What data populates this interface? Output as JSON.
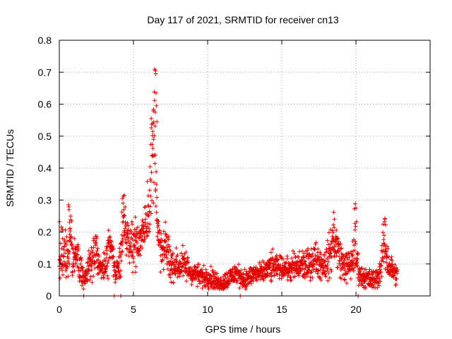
{
  "chart_data": {
    "type": "scatter",
    "title": "Day 117 of 2021, SRMTID for receiver cn13",
    "xlabel": "GPS time / hours",
    "ylabel": "SRMTID / TECUs",
    "xlim": [
      0,
      25
    ],
    "ylim": [
      0,
      0.8
    ],
    "xticks": [
      0,
      5,
      10,
      15,
      20
    ],
    "xtick_labels": [
      "0",
      "5",
      "10",
      "15",
      "20"
    ],
    "yticks": [
      0,
      0.1,
      0.2,
      0.3,
      0.4,
      0.5,
      0.6,
      0.7,
      0.8
    ],
    "ytick_labels": [
      "0",
      "0.1",
      "0.2",
      "0.3",
      "0.4",
      "0.5",
      "0.6",
      "0.7",
      "0.8"
    ],
    "grid": true,
    "marker": "plus",
    "color": "#e00000",
    "envelope": [
      [
        0.0,
        0.14,
        0.06
      ],
      [
        0.2,
        0.12,
        0.05
      ],
      [
        0.4,
        0.11,
        0.05
      ],
      [
        0.6,
        0.14,
        0.06
      ],
      [
        0.75,
        0.2,
        0.07
      ],
      [
        0.9,
        0.13,
        0.05
      ],
      [
        1.1,
        0.12,
        0.04
      ],
      [
        1.3,
        0.1,
        0.04
      ],
      [
        1.5,
        0.08,
        0.03
      ],
      [
        1.7,
        0.06,
        0.02
      ],
      [
        1.9,
        0.07,
        0.03
      ],
      [
        2.1,
        0.1,
        0.04
      ],
      [
        2.3,
        0.12,
        0.04
      ],
      [
        2.5,
        0.14,
        0.04
      ],
      [
        2.7,
        0.1,
        0.03
      ],
      [
        2.9,
        0.08,
        0.03
      ],
      [
        3.1,
        0.09,
        0.03
      ],
      [
        3.3,
        0.13,
        0.04
      ],
      [
        3.5,
        0.15,
        0.04
      ],
      [
        3.7,
        0.09,
        0.03
      ],
      [
        3.9,
        0.08,
        0.02
      ],
      [
        4.1,
        0.12,
        0.04
      ],
      [
        4.3,
        0.24,
        0.05
      ],
      [
        4.5,
        0.2,
        0.04
      ],
      [
        4.7,
        0.17,
        0.04
      ],
      [
        4.9,
        0.16,
        0.04
      ],
      [
        5.1,
        0.18,
        0.05
      ],
      [
        5.3,
        0.15,
        0.04
      ],
      [
        5.5,
        0.18,
        0.04
      ],
      [
        5.7,
        0.22,
        0.05
      ],
      [
        5.9,
        0.25,
        0.06
      ],
      [
        6.1,
        0.3,
        0.08
      ],
      [
        6.3,
        0.45,
        0.12
      ],
      [
        6.45,
        0.58,
        0.12
      ],
      [
        6.6,
        0.2,
        0.06
      ],
      [
        6.8,
        0.15,
        0.04
      ],
      [
        7.0,
        0.13,
        0.04
      ],
      [
        7.2,
        0.16,
        0.04
      ],
      [
        7.4,
        0.12,
        0.04
      ],
      [
        7.6,
        0.09,
        0.03
      ],
      [
        7.8,
        0.1,
        0.03
      ],
      [
        8.0,
        0.09,
        0.03
      ],
      [
        8.3,
        0.1,
        0.03
      ],
      [
        8.6,
        0.09,
        0.03
      ],
      [
        8.9,
        0.07,
        0.02
      ],
      [
        9.2,
        0.07,
        0.02
      ],
      [
        9.5,
        0.06,
        0.02
      ],
      [
        9.8,
        0.06,
        0.02
      ],
      [
        10.1,
        0.06,
        0.02
      ],
      [
        10.4,
        0.05,
        0.02
      ],
      [
        10.7,
        0.04,
        0.015
      ],
      [
        11.0,
        0.04,
        0.015
      ],
      [
        11.3,
        0.05,
        0.02
      ],
      [
        11.6,
        0.06,
        0.02
      ],
      [
        11.9,
        0.07,
        0.02
      ],
      [
        12.2,
        0.06,
        0.02
      ],
      [
        12.5,
        0.05,
        0.02
      ],
      [
        12.8,
        0.06,
        0.02
      ],
      [
        13.1,
        0.07,
        0.02
      ],
      [
        13.4,
        0.07,
        0.02
      ],
      [
        13.7,
        0.07,
        0.02
      ],
      [
        14.0,
        0.08,
        0.02
      ],
      [
        14.3,
        0.09,
        0.03
      ],
      [
        14.6,
        0.09,
        0.02
      ],
      [
        14.9,
        0.09,
        0.02
      ],
      [
        15.2,
        0.09,
        0.02
      ],
      [
        15.5,
        0.08,
        0.02
      ],
      [
        15.8,
        0.09,
        0.03
      ],
      [
        16.1,
        0.09,
        0.03
      ],
      [
        16.4,
        0.1,
        0.03
      ],
      [
        16.7,
        0.09,
        0.03
      ],
      [
        17.0,
        0.11,
        0.03
      ],
      [
        17.3,
        0.12,
        0.03
      ],
      [
        17.6,
        0.1,
        0.03
      ],
      [
        17.9,
        0.1,
        0.03
      ],
      [
        18.2,
        0.12,
        0.04
      ],
      [
        18.5,
        0.18,
        0.05
      ],
      [
        18.8,
        0.14,
        0.04
      ],
      [
        19.1,
        0.1,
        0.03
      ],
      [
        19.4,
        0.09,
        0.03
      ],
      [
        19.7,
        0.1,
        0.03
      ],
      [
        19.9,
        0.16,
        0.07
      ],
      [
        20.1,
        0.1,
        0.03
      ],
      [
        20.3,
        0.06,
        0.02
      ],
      [
        20.6,
        0.06,
        0.02
      ],
      [
        20.9,
        0.05,
        0.02
      ],
      [
        21.2,
        0.05,
        0.02
      ],
      [
        21.5,
        0.06,
        0.02
      ],
      [
        21.7,
        0.09,
        0.03
      ],
      [
        21.9,
        0.17,
        0.05
      ],
      [
        22.1,
        0.12,
        0.04
      ],
      [
        22.3,
        0.09,
        0.03
      ],
      [
        22.5,
        0.08,
        0.02
      ],
      [
        22.8,
        0.06,
        0.02
      ]
    ],
    "spikes": [
      [
        0.62,
        0.285
      ],
      [
        0.65,
        0.27
      ],
      [
        0.68,
        0.23
      ],
      [
        0.72,
        0.21
      ],
      [
        4.25,
        0.305
      ],
      [
        4.3,
        0.29
      ],
      [
        4.35,
        0.27
      ],
      [
        6.2,
        0.555
      ],
      [
        6.3,
        0.54
      ],
      [
        6.35,
        0.49
      ],
      [
        6.4,
        0.44
      ],
      [
        6.48,
        0.705
      ],
      [
        6.5,
        0.695
      ],
      [
        6.52,
        0.635
      ],
      [
        6.55,
        0.595
      ],
      [
        6.58,
        0.545
      ],
      [
        18.5,
        0.262
      ],
      [
        18.55,
        0.24
      ],
      [
        19.95,
        0.288
      ],
      [
        20.0,
        0.275
      ],
      [
        20.05,
        0.232
      ],
      [
        21.95,
        0.24
      ],
      [
        22.0,
        0.222
      ]
    ],
    "zero_markers": [
      1.65,
      3.7,
      4.15,
      12.2,
      20.15
    ]
  }
}
